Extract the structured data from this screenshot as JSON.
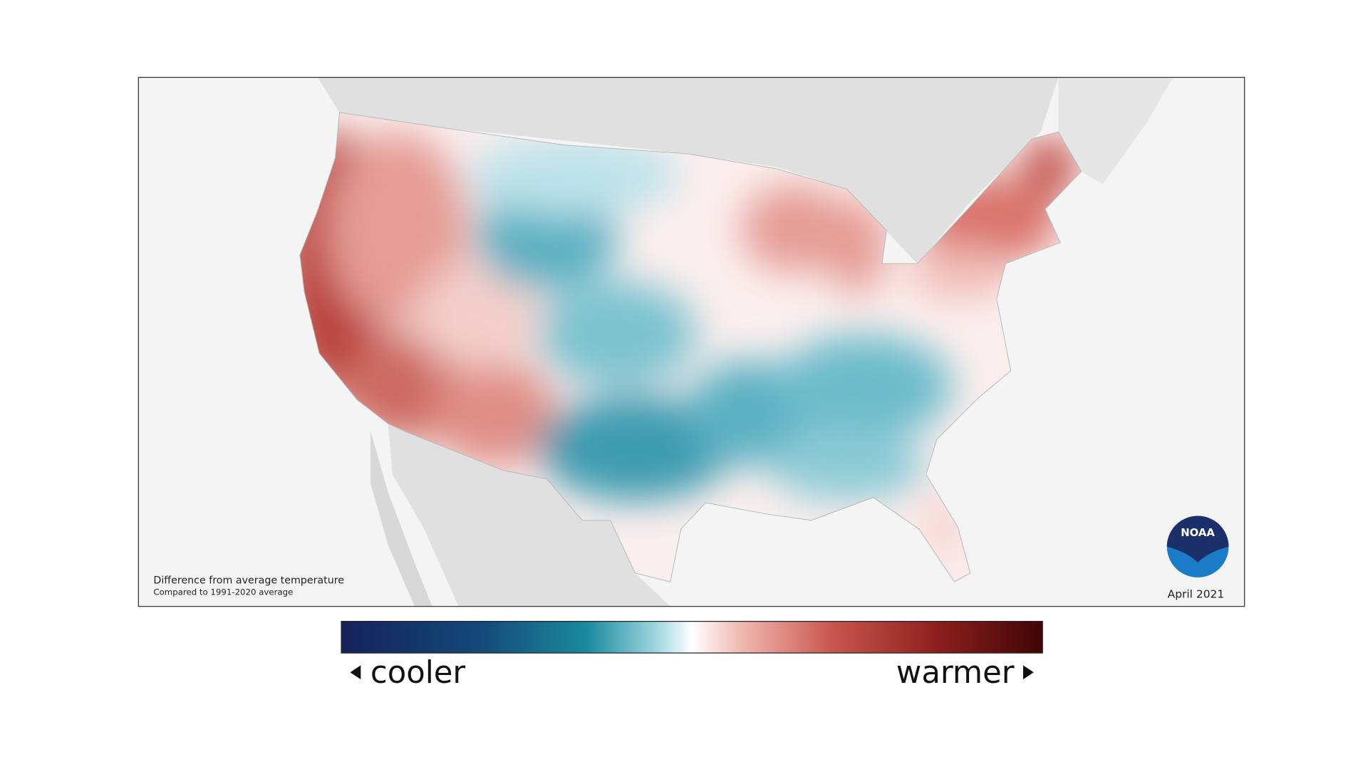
{
  "map": {
    "caption": {
      "title": "Difference from average temperature",
      "subtitle": "Compared to 1991-2020 average"
    },
    "date": "April 2021",
    "logo": "NOAA"
  },
  "legend": {
    "low_label": "cooler",
    "high_label": "warmer"
  }
}
